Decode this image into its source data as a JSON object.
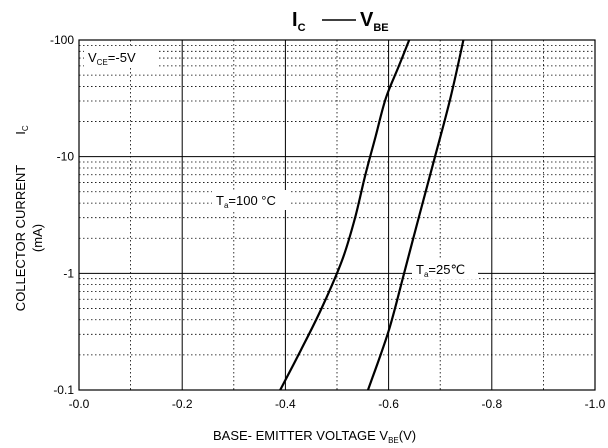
{
  "chart_data": {
    "type": "line",
    "title": {
      "main": "I",
      "main_sub": "C",
      "sep": " —— ",
      "right": "V",
      "right_sub": "BE"
    },
    "xlabel": {
      "text": "BASE- EMITTER VOLTAGE  V",
      "sub": "BE",
      "unit": "(V)"
    },
    "ylabel": {
      "line1": "COLLECTOR CURRENT",
      "line2": "(mA)",
      "symbol": "I",
      "symbol_sub": "C"
    },
    "x_ticks": [
      "-0.0",
      "-0.2",
      "-0.4",
      "-0.6",
      "-0.8",
      "-1.0"
    ],
    "y_ticks": [
      "-100",
      "-10",
      "-1",
      "-0.1"
    ],
    "xlim": [
      0,
      1.0
    ],
    "ylim": [
      0.1,
      100
    ],
    "y_scale": "log",
    "x_axis_direction": "magnitude increases to the right (negative values)",
    "grid": true,
    "annotations": [
      {
        "name": "vce-label",
        "text": "V",
        "sub": "CE",
        "tail": "=-5V"
      }
    ],
    "series": [
      {
        "name": "T=100°C",
        "label": {
          "text": "T",
          "sub": "a",
          "tail": "=100 °C"
        },
        "x": [
          0.39,
          0.43,
          0.47,
          0.51,
          0.535,
          0.555,
          0.575,
          0.595,
          0.62,
          0.64
        ],
        "y": [
          0.1,
          0.22,
          0.5,
          1.3,
          3.0,
          7.0,
          15.0,
          32.0,
          60.0,
          100.0
        ]
      },
      {
        "name": "T=25°C",
        "label": {
          "text": "T",
          "sub": "a",
          "tail": "=25℃"
        },
        "x": [
          0.56,
          0.6,
          0.63,
          0.66,
          0.69,
          0.72,
          0.745
        ],
        "y": [
          0.1,
          0.32,
          1.0,
          3.2,
          10.0,
          32.0,
          100.0
        ]
      }
    ]
  }
}
